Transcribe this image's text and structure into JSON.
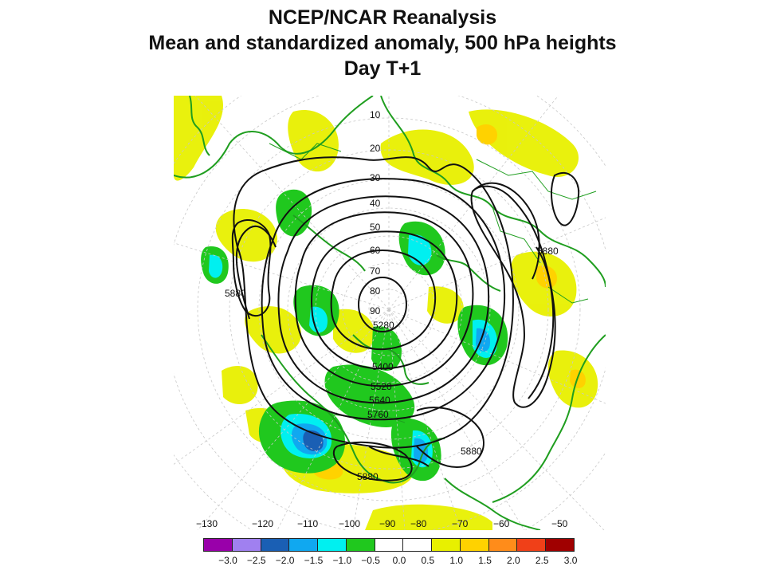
{
  "title": {
    "line1": "NCEP/NCAR Reanalysis",
    "line2": "Mean and standardized anomaly, 500 hPa heights",
    "line3": "Day T+1"
  },
  "map": {
    "projection": "polar stereographic, Northern Hemisphere",
    "latitude_labels": [
      "10",
      "20",
      "30",
      "40",
      "50",
      "60",
      "70",
      "80",
      "90"
    ],
    "longitude_labels": [
      "−130",
      "−120",
      "−110",
      "−100",
      "−90",
      "−80",
      "−70",
      "−60",
      "−50"
    ],
    "height_contour_labels": [
      "5880",
      "5880",
      "5880",
      "5880",
      "5280",
      "5400",
      "5520",
      "5640",
      "5760"
    ]
  },
  "colorbar": {
    "colors": [
      "#9900aa",
      "#a080f0",
      "#1a5fb4",
      "#10a8f0",
      "#00f0f0",
      "#20c81e",
      "#ffffff",
      "#ffffff",
      "#e8f000",
      "#ffd200",
      "#ff8c1a",
      "#f04018",
      "#a00000"
    ],
    "tick_labels": [
      "−3.0",
      "−2.5",
      "−2.0",
      "−1.5",
      "−1.0",
      "−0.5",
      "0.0",
      "0.5",
      "1.0",
      "1.5",
      "2.0",
      "2.5",
      "3.0"
    ]
  }
}
